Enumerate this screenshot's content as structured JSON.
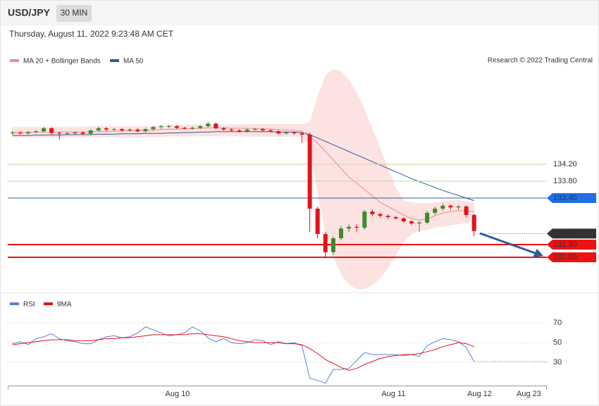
{
  "header": {
    "symbol": "USD/JPY",
    "timeframe": "30 MIN",
    "timestamp": "Thursday, August 11, 2022 9:23:48 AM CET",
    "credit": "Research © 2022 Trading Central"
  },
  "chart_data": [
    {
      "type": "candlestick",
      "legend": [
        {
          "name": "MA 20 + Bollinger Bands",
          "color": "#f08a8a"
        },
        {
          "name": "MA 50",
          "color": "#2f5b9a"
        }
      ],
      "xlim": [
        -0.6,
        68.3
      ],
      "xticks": [
        {
          "value": 21.1,
          "label": "Aug 10"
        },
        {
          "value": 48.7,
          "label": "Aug 11"
        },
        {
          "value": 59.7,
          "label": "Aug 12"
        },
        {
          "value": 66,
          "label": "Aug 23"
        }
      ],
      "ylim": [
        131.2,
        136.5
      ],
      "up_color": "#3c8a2e",
      "down_color": "#e3121b",
      "open": [
        134.93,
        134.95,
        134.93,
        134.96,
        134.98,
        135.05,
        134.94,
        134.92,
        134.93,
        134.95,
        134.92,
        135.0,
        135.05,
        135.02,
        135.03,
        135.0,
        135.02,
        134.98,
        135.03,
        135.08,
        135.1,
        135.1,
        135.06,
        135.04,
        135.06,
        135.1,
        135.16,
        135.05,
        135.02,
        135.0,
        134.98,
        135.02,
        135.03,
        135.0,
        134.98,
        134.93,
        134.95,
        134.93,
        134.9,
        133.15,
        132.55,
        132.12,
        132.45,
        132.68,
        132.72,
        132.7,
        133.08,
        133.02,
        132.98,
        132.95,
        132.92,
        132.85,
        132.8,
        132.82,
        133.05,
        133.15,
        133.22,
        133.18,
        133.2,
        133.0
      ],
      "high": [
        134.99,
        134.98,
        134.99,
        135.01,
        135.09,
        135.08,
        134.97,
        134.96,
        134.98,
        134.98,
        135.03,
        135.09,
        135.08,
        135.06,
        135.06,
        135.05,
        135.05,
        135.06,
        135.11,
        135.13,
        135.13,
        135.13,
        135.09,
        135.09,
        135.13,
        135.2,
        135.19,
        135.08,
        135.05,
        135.03,
        135.05,
        135.06,
        135.06,
        135.03,
        135.01,
        134.98,
        134.98,
        134.96,
        134.95,
        133.2,
        132.6,
        132.5,
        132.75,
        132.78,
        132.78,
        133.12,
        133.12,
        133.05,
        133.02,
        132.98,
        132.95,
        132.88,
        132.86,
        133.1,
        133.2,
        133.27,
        133.25,
        133.24,
        133.23,
        133.03
      ],
      "low": [
        134.9,
        134.9,
        134.9,
        134.93,
        134.95,
        134.9,
        134.78,
        134.89,
        134.9,
        134.89,
        134.89,
        134.97,
        134.98,
        134.99,
        134.97,
        134.97,
        134.95,
        134.95,
        134.99,
        135.04,
        135.06,
        135.03,
        135.02,
        135.01,
        135.03,
        135.07,
        135.02,
        134.99,
        134.97,
        134.95,
        134.95,
        134.99,
        134.97,
        134.95,
        134.9,
        134.9,
        134.9,
        134.7,
        132.6,
        132.45,
        131.98,
        132.05,
        132.4,
        132.6,
        132.6,
        132.65,
        132.97,
        132.93,
        132.9,
        132.88,
        132.82,
        132.76,
        132.6,
        132.78,
        133.0,
        133.1,
        133.12,
        133.12,
        132.95,
        132.5
      ],
      "close": [
        134.95,
        134.93,
        134.96,
        134.98,
        135.05,
        134.94,
        134.92,
        134.93,
        134.95,
        134.92,
        135.0,
        135.05,
        135.02,
        135.03,
        135.0,
        135.02,
        134.98,
        135.03,
        135.08,
        135.1,
        135.1,
        135.06,
        135.04,
        135.06,
        135.1,
        135.16,
        135.05,
        135.02,
        135.0,
        134.98,
        135.02,
        135.03,
        135.0,
        134.98,
        134.93,
        134.95,
        134.93,
        134.9,
        133.15,
        132.55,
        132.12,
        132.45,
        132.68,
        132.72,
        132.7,
        133.08,
        133.02,
        132.98,
        132.95,
        132.92,
        132.85,
        132.8,
        132.82,
        133.05,
        133.15,
        133.22,
        133.18,
        133.2,
        133.0,
        132.62
      ],
      "ma20": [
        134.95,
        134.95,
        134.95,
        134.96,
        134.96,
        134.96,
        134.96,
        134.96,
        134.96,
        134.96,
        134.97,
        134.97,
        134.98,
        134.98,
        134.99,
        134.99,
        135.0,
        135.0,
        135.01,
        135.02,
        135.03,
        135.03,
        135.04,
        135.04,
        135.05,
        135.06,
        135.06,
        135.06,
        135.05,
        135.05,
        135.05,
        135.04,
        135.04,
        135.03,
        135.02,
        135.01,
        135.0,
        134.98,
        134.85,
        134.7,
        134.5,
        134.3,
        134.1,
        133.9,
        133.75,
        133.6,
        133.45,
        133.3,
        133.2,
        133.1,
        133.0,
        132.92,
        132.88,
        132.9,
        132.98,
        133.05,
        133.08,
        133.1,
        133.1,
        133.08
      ],
      "ma50": [
        134.88,
        134.88,
        134.88,
        134.89,
        134.89,
        134.89,
        134.89,
        134.9,
        134.9,
        134.9,
        134.9,
        134.91,
        134.91,
        134.91,
        134.92,
        134.92,
        134.92,
        134.93,
        134.93,
        134.93,
        134.94,
        134.94,
        134.95,
        134.95,
        134.96,
        134.96,
        134.97,
        134.97,
        134.97,
        134.97,
        134.97,
        134.97,
        134.97,
        134.97,
        134.96,
        134.96,
        134.96,
        134.95,
        134.9,
        134.82,
        134.74,
        134.66,
        134.58,
        134.5,
        134.42,
        134.34,
        134.26,
        134.18,
        134.1,
        134.02,
        133.94,
        133.86,
        133.79,
        133.72,
        133.65,
        133.58,
        133.52,
        133.46,
        133.4,
        133.34
      ],
      "bb_upper": [
        135.08,
        135.08,
        135.08,
        135.08,
        135.08,
        135.08,
        135.08,
        135.08,
        135.08,
        135.08,
        135.1,
        135.1,
        135.1,
        135.1,
        135.1,
        135.1,
        135.1,
        135.1,
        135.1,
        135.1,
        135.14,
        135.14,
        135.14,
        135.14,
        135.14,
        135.14,
        135.14,
        135.14,
        135.14,
        135.14,
        135.15,
        135.15,
        135.15,
        135.15,
        135.15,
        135.15,
        135.15,
        135.15,
        135.2,
        135.8,
        136.3,
        136.45,
        136.4,
        136.2,
        135.9,
        135.5,
        135.05,
        134.6,
        134.1,
        133.65,
        133.35,
        133.3,
        133.28,
        133.28,
        133.3,
        133.32,
        133.35,
        133.35,
        133.33,
        133.3
      ],
      "bb_lower": [
        134.83,
        134.83,
        134.83,
        134.83,
        134.83,
        134.83,
        134.83,
        134.83,
        134.83,
        134.83,
        134.84,
        134.84,
        134.84,
        134.84,
        134.84,
        134.84,
        134.84,
        134.84,
        134.84,
        134.84,
        134.86,
        134.86,
        134.86,
        134.86,
        134.86,
        134.86,
        134.86,
        134.86,
        134.86,
        134.86,
        134.85,
        134.85,
        134.85,
        134.85,
        134.85,
        134.85,
        134.85,
        134.85,
        134.6,
        133.5,
        132.6,
        132.0,
        131.6,
        131.35,
        131.25,
        131.25,
        131.35,
        131.5,
        131.75,
        132.05,
        132.35,
        132.55,
        132.62,
        132.65,
        132.7,
        132.72,
        132.75,
        132.78,
        132.82,
        132.85
      ],
      "levels": [
        {
          "value": 134.2,
          "label": "134.20",
          "color": "#5f9e1e",
          "line_color": "#bcd99a",
          "box": false,
          "line": "solid",
          "width": 1
        },
        {
          "value": 133.8,
          "label": "133.80",
          "color": "#5f9e1e",
          "line_color": "#bcd99a",
          "box": false,
          "line": "solid",
          "width": 1
        },
        {
          "value": 133.4,
          "label": "133.40",
          "color": "#1f6fe5",
          "line_color": "#2c5f9e",
          "box": true,
          "line": "solid",
          "width": 1
        },
        {
          "value": 132.56,
          "label": "132.56",
          "color": "#333333",
          "line_color": "#555555",
          "box": true,
          "line": "dotted",
          "width": 1
        },
        {
          "value": 132.3,
          "label": "132.30",
          "color": "#ee1111",
          "line_color": "#ee1111",
          "box": true,
          "line": "solid",
          "width": 2
        },
        {
          "value": 132.0,
          "label": "132.00",
          "color": "#ee1111",
          "line_color": "#ee1111",
          "box": true,
          "line": "solid",
          "width": 2
        }
      ]
    },
    {
      "type": "line",
      "xlim": [
        -0.6,
        68.3
      ],
      "ylim": [
        6,
        85
      ],
      "yticks": [
        70,
        50,
        30
      ],
      "grid": true,
      "series": [
        {
          "name": "RSI",
          "color": "#5b7fd6",
          "values": [
            49,
            51,
            48,
            54,
            56,
            59,
            54,
            52,
            51,
            49,
            49,
            53,
            56,
            57,
            55,
            56,
            60,
            66,
            63,
            60,
            57,
            58,
            60,
            66,
            62,
            55,
            51,
            54,
            50,
            49,
            50,
            53,
            52,
            48,
            51,
            49,
            50,
            47,
            14,
            12,
            9,
            23,
            23,
            24,
            32,
            40,
            38,
            38,
            38,
            38,
            37,
            38,
            36,
            47,
            51,
            54,
            53,
            51,
            45,
            31
          ]
        },
        {
          "name": "9MA",
          "color": "#e3121b",
          "values": [
            48,
            49,
            50,
            51,
            52,
            53,
            53,
            53,
            52,
            52,
            52,
            53,
            54,
            54,
            55,
            55,
            56,
            57,
            58,
            58,
            58,
            58,
            58,
            59,
            59,
            58,
            57,
            56,
            54,
            52,
            51,
            50,
            50,
            50,
            50,
            49,
            49,
            48,
            44,
            39,
            33,
            29,
            25,
            22,
            24,
            28,
            31,
            34,
            36,
            37,
            38,
            38,
            39,
            41,
            43,
            46,
            48,
            50,
            49,
            46
          ]
        }
      ]
    }
  ]
}
